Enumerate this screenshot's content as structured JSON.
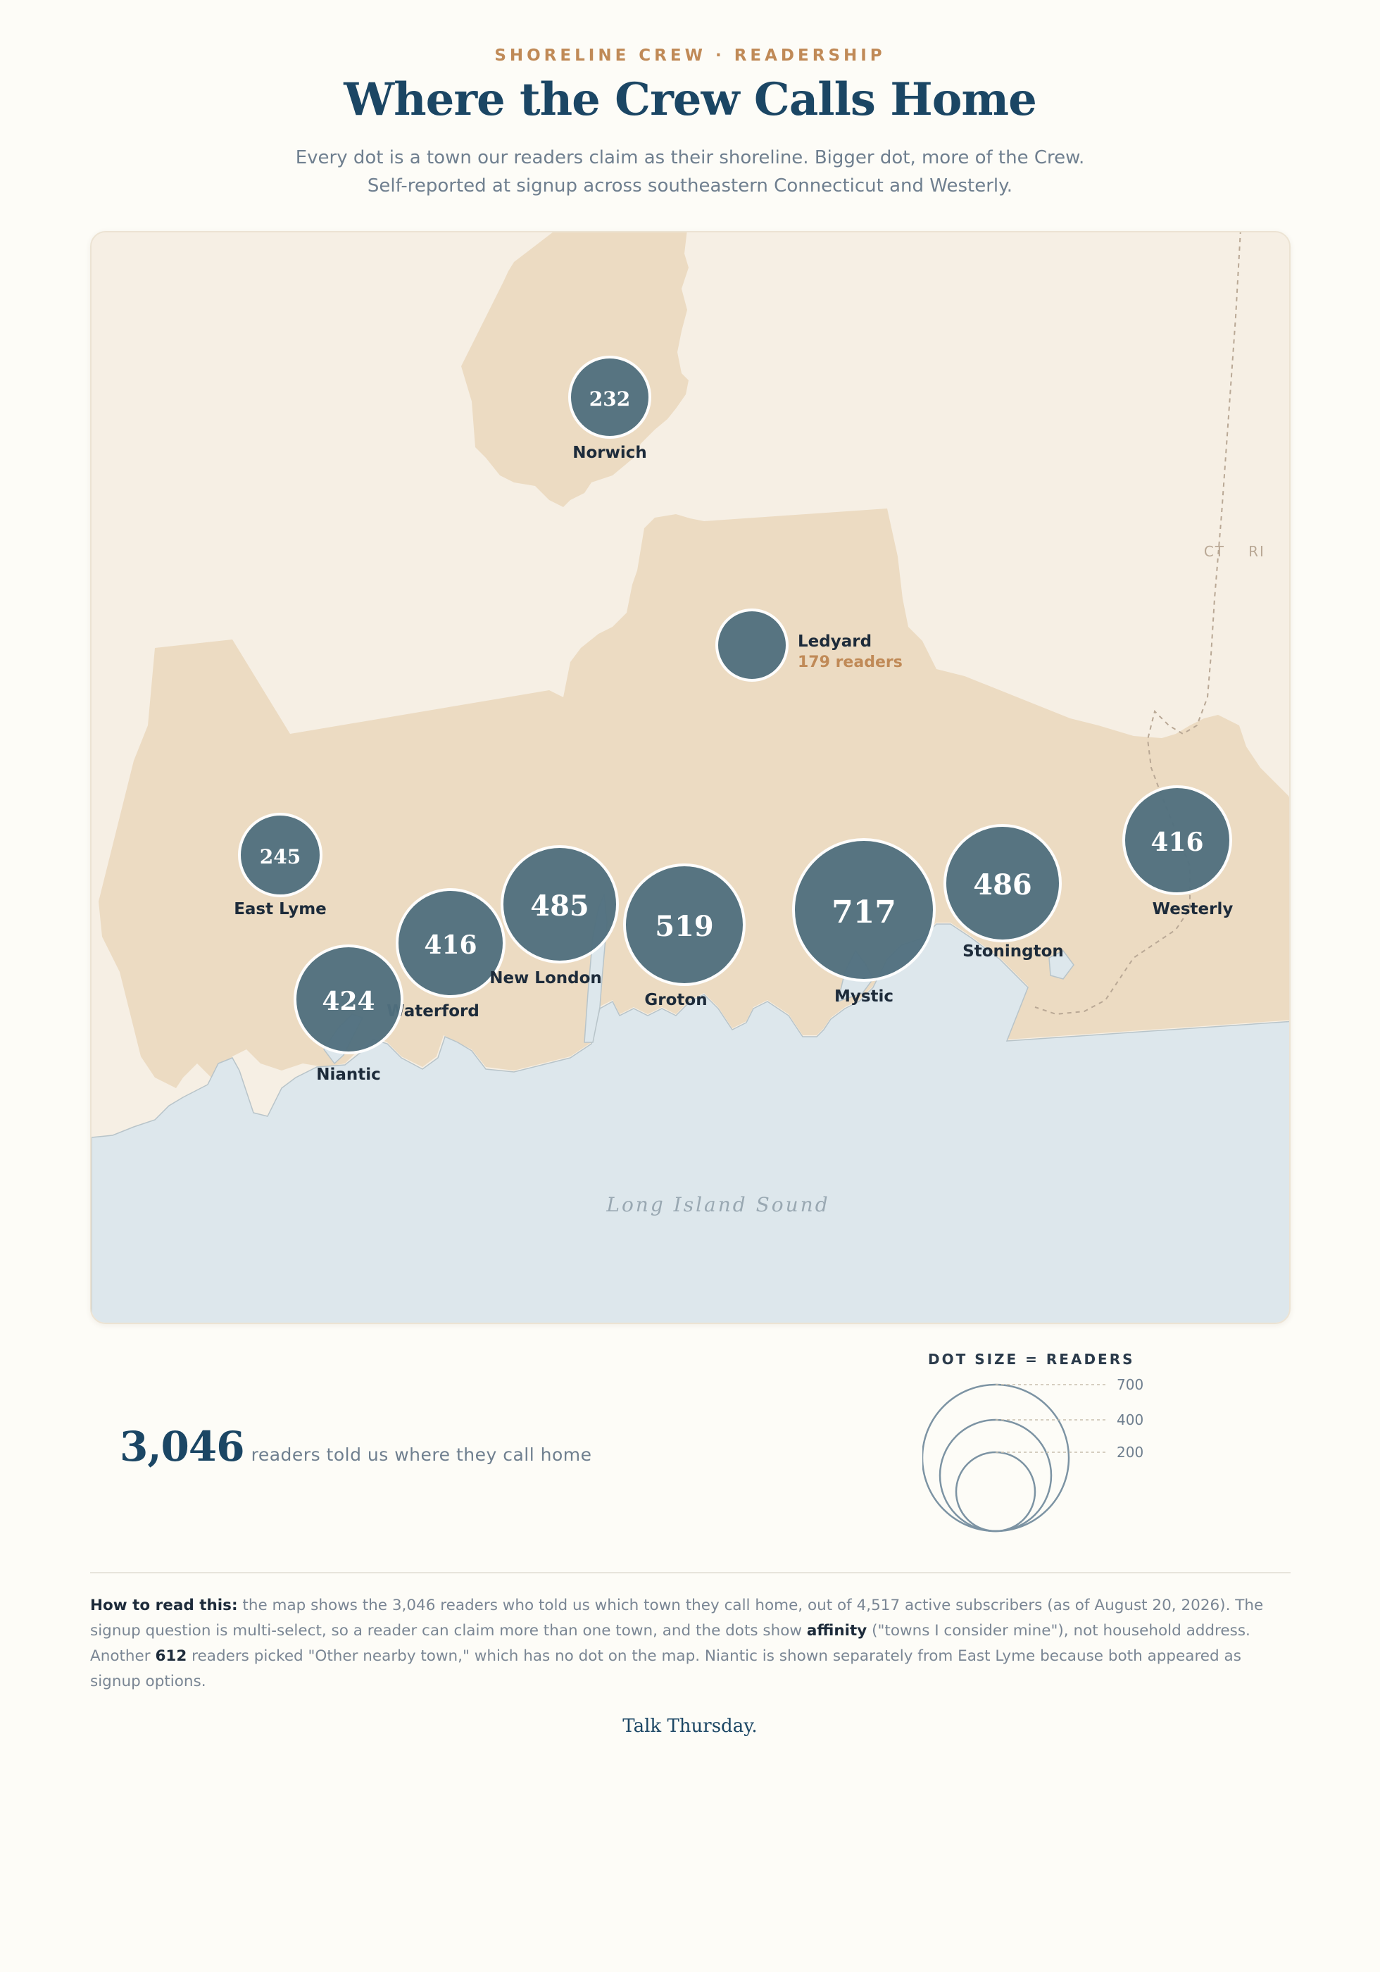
{
  "header": {
    "kicker": "SHORELINE CREW · READERSHIP",
    "title": "Where the Crew Calls Home",
    "subtitle_line1": "Every dot is a town our readers claim as their shoreline. Bigger dot, more of the Crew.",
    "subtitle_line2": "Self-reported at signup across southeastern Connecticut and Westerly."
  },
  "map": {
    "water_label": "Long Island Sound",
    "state_labels": [
      "CT",
      "RI"
    ],
    "colors": {
      "land_highlight": "#ecdbc2",
      "land_other": "#f6efe4",
      "water": "#dde7ec",
      "dot": "#51707f",
      "dot_stroke": "#ffffff",
      "accent": "#c08a57",
      "border_line": "#b9a895"
    },
    "towns": [
      {
        "name": "Norwich",
        "readers": 232,
        "label": "232"
      },
      {
        "name": "Ledyard",
        "readers": 179,
        "label": "179 readers"
      },
      {
        "name": "East Lyme",
        "readers": 245,
        "label": "245"
      },
      {
        "name": "Waterford",
        "readers": 416,
        "label": "416"
      },
      {
        "name": "New London",
        "readers": 485,
        "label": "485"
      },
      {
        "name": "Niantic",
        "readers": 424,
        "label": "424"
      },
      {
        "name": "Groton",
        "readers": 519,
        "label": "519"
      },
      {
        "name": "Mystic",
        "readers": 717,
        "label": "717"
      },
      {
        "name": "Stonington",
        "readers": 486,
        "label": "486"
      },
      {
        "name": "Westerly",
        "readers": 416,
        "label": "416"
      }
    ]
  },
  "stat": {
    "value": "3,046",
    "text": "readers told us where they call home"
  },
  "legend": {
    "title": "DOT SIZE = READERS",
    "sizes": [
      {
        "value": 700,
        "label": "700"
      },
      {
        "value": 400,
        "label": "400"
      },
      {
        "value": 200,
        "label": "200"
      }
    ]
  },
  "note": {
    "lead": "How to read this:",
    "part1": " the map shows the 3,046 readers who told us which town they call home, out of 4,517 active subscribers (as of August 20, 2026). The signup question is multi-select, so a reader can claim more than one town, and the dots show ",
    "bold1": "affinity",
    "part2": " (\"towns I consider mine\"), not household address. Another ",
    "bold2": "612",
    "part3": " readers picked \"Other nearby town,\" which has no dot on the map. Niantic is shown separately from East Lyme because both appeared as signup options."
  },
  "signoff": "Talk Thursday."
}
